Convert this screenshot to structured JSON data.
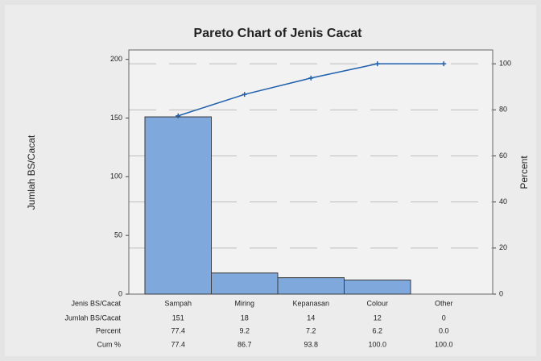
{
  "chart_data": {
    "type": "pareto",
    "title": "Pareto Chart of Jenis Cacat",
    "x_label": "Jenis BS/Cacat",
    "y_label": "Jumlah BS/Cacat",
    "y2_label": "Percent",
    "categories": [
      "Sampah",
      "Miring",
      "Kepanasan",
      "Colour",
      "Other"
    ],
    "series": [
      {
        "name": "Jumlah BS/Cacat",
        "color": "#7fa8dc",
        "values": [
          151,
          18,
          14,
          12,
          0
        ]
      },
      {
        "name": "Percent",
        "values": [
          77.4,
          9.2,
          7.2,
          6.2,
          0
        ],
        "value_labels": [
          "77.4",
          "9.2",
          "7.2",
          "6.2",
          "0.0"
        ],
        "axis": "y2"
      },
      {
        "name": "Cum %",
        "color": "#1f5fae",
        "values": [
          77.4,
          86.7,
          93.8,
          100,
          100
        ],
        "value_labels": [
          "77.4",
          "86.7",
          "93.8",
          "100.0",
          "100.0"
        ],
        "axis": "y2"
      }
    ],
    "ylim": [
      0,
      208
    ],
    "yticks": [
      0,
      50,
      100,
      150,
      200
    ],
    "y2lim": [
      0,
      106
    ],
    "y2ticks": [
      0,
      20,
      40,
      60,
      80,
      100
    ],
    "grid": true
  }
}
